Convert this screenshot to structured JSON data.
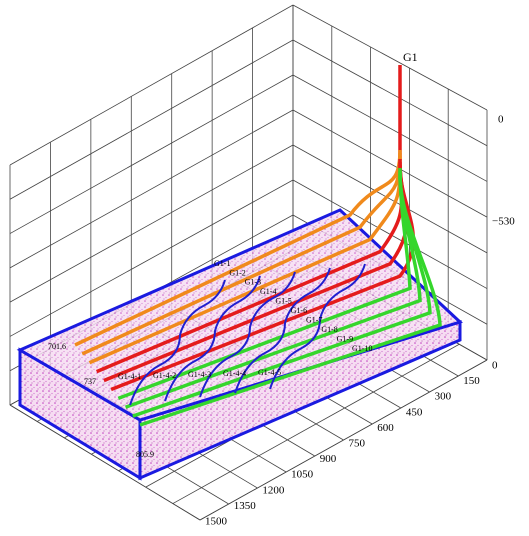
{
  "title": "G1",
  "vertical_axis": {
    "ticks": [
      "0",
      "−530"
    ]
  },
  "horizontal_axis": {
    "ticks": [
      "0",
      "150",
      "300",
      "450",
      "600",
      "750",
      "900",
      "1050",
      "1200",
      "1350",
      "1500"
    ]
  },
  "depth_labels": [
    "701.6",
    "737",
    "805.9"
  ],
  "well_labels": [
    "G1-1",
    "G1-2",
    "G1-3",
    "G1-4",
    "G1-5",
    "G1-6",
    "G1-7",
    "G1-8",
    "G1-9",
    "G1-10"
  ],
  "branch_labels": [
    "G1-4-1",
    "G1-4-2",
    "G1-4-3",
    "G1-4-4",
    "G1-4-5"
  ]
}
